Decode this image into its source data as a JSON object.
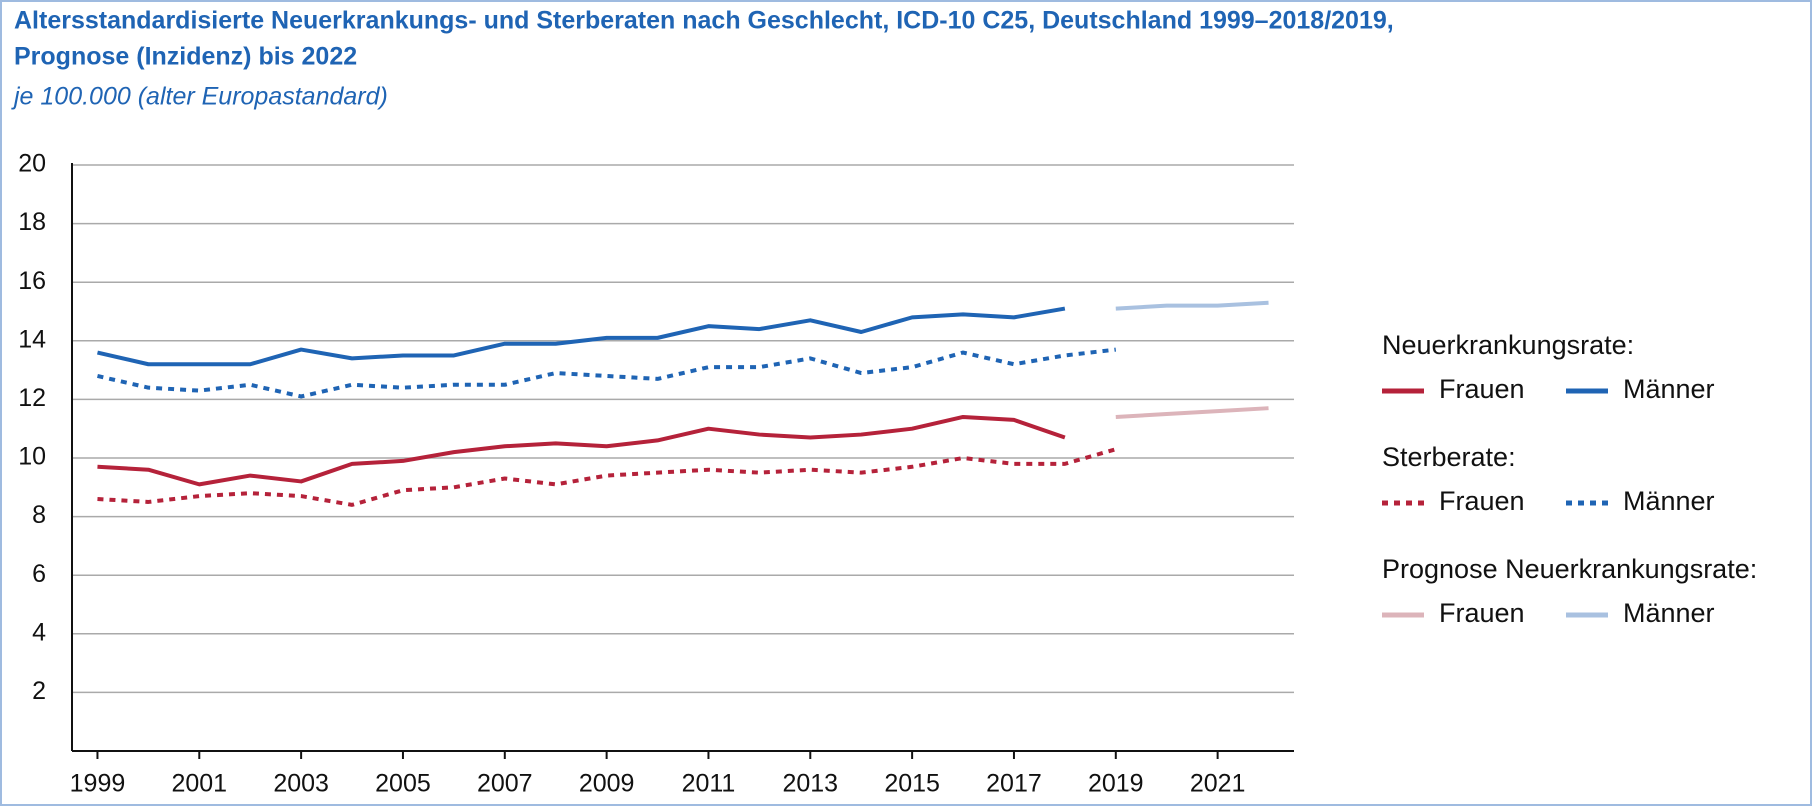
{
  "chart_data": {
    "type": "line",
    "title": [
      "Altersstandardisierte Neuerkrankungs- und Sterberaten nach Geschlecht, ICD-10 C25, Deutschland 1999–2018/2019,",
      "Prognose (Inzidenz) bis 2022"
    ],
    "subtitle": "je 100.000 (alter Europastandard)",
    "x": [
      1999,
      2000,
      2001,
      2002,
      2003,
      2004,
      2005,
      2006,
      2007,
      2008,
      2009,
      2010,
      2011,
      2012,
      2013,
      2014,
      2015,
      2016,
      2017,
      2018,
      2019,
      2020,
      2021,
      2022
    ],
    "xlim": [
      1998.5,
      2022.5
    ],
    "xticks": [
      1999,
      2001,
      2003,
      2005,
      2007,
      2009,
      2011,
      2013,
      2015,
      2017,
      2019,
      2021
    ],
    "ylim": [
      0,
      20
    ],
    "yticks": [
      2,
      4,
      6,
      8,
      10,
      12,
      14,
      16,
      18,
      20
    ],
    "grid": true,
    "legend": "right",
    "series_groups": [
      {
        "title": "Neuerkrankungsrate:",
        "series": [
          {
            "name": "Frauen",
            "color": "#b5223a",
            "style": "solid",
            "values": [
              9.7,
              9.6,
              9.1,
              9.4,
              9.2,
              9.8,
              9.9,
              10.2,
              10.4,
              10.5,
              10.4,
              10.6,
              11.0,
              10.8,
              10.7,
              10.8,
              11.0,
              11.4,
              11.3,
              10.7,
              null,
              null,
              null,
              null
            ]
          },
          {
            "name": "Männer",
            "color": "#1f64b4",
            "style": "solid",
            "values": [
              13.6,
              13.2,
              13.2,
              13.2,
              13.7,
              13.4,
              13.5,
              13.5,
              13.9,
              13.9,
              14.1,
              14.1,
              14.5,
              14.4,
              14.7,
              14.3,
              14.8,
              14.9,
              14.8,
              15.1,
              null,
              null,
              null,
              null
            ]
          }
        ]
      },
      {
        "title": "Sterberate:",
        "series": [
          {
            "name": "Frauen",
            "color": "#b5223a",
            "style": "dotted",
            "values": [
              8.6,
              8.5,
              8.7,
              8.8,
              8.7,
              8.4,
              8.9,
              9.0,
              9.3,
              9.1,
              9.4,
              9.5,
              9.6,
              9.5,
              9.6,
              9.5,
              9.7,
              10.0,
              9.8,
              9.8,
              10.3,
              null,
              null,
              null
            ]
          },
          {
            "name": "Männer",
            "color": "#1f64b4",
            "style": "dotted",
            "values": [
              12.8,
              12.4,
              12.3,
              12.5,
              12.1,
              12.5,
              12.4,
              12.5,
              12.5,
              12.9,
              12.8,
              12.7,
              13.1,
              13.1,
              13.4,
              12.9,
              13.1,
              13.6,
              13.2,
              13.5,
              13.7,
              null,
              null,
              null
            ]
          }
        ]
      },
      {
        "title": "Prognose Neuerkrankungsrate:",
        "series": [
          {
            "name": "Frauen",
            "color": "#dcb4ba",
            "style": "solid",
            "values": [
              null,
              null,
              null,
              null,
              null,
              null,
              null,
              null,
              null,
              null,
              null,
              null,
              null,
              null,
              null,
              null,
              null,
              null,
              null,
              null,
              11.4,
              11.5,
              11.6,
              11.7
            ]
          },
          {
            "name": "Männer",
            "color": "#a9c1e0",
            "style": "solid",
            "values": [
              null,
              null,
              null,
              null,
              null,
              null,
              null,
              null,
              null,
              null,
              null,
              null,
              null,
              null,
              null,
              null,
              null,
              null,
              null,
              null,
              15.1,
              15.2,
              15.2,
              15.3
            ]
          }
        ]
      }
    ]
  }
}
